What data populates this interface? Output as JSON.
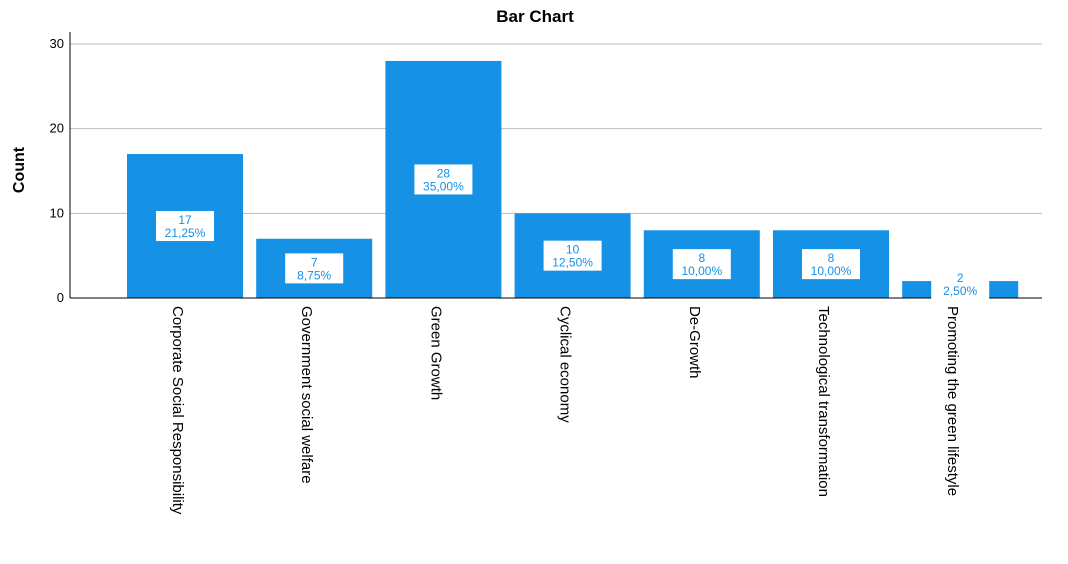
{
  "chart_data": {
    "type": "bar",
    "title": "Bar Chart",
    "xlabel": "",
    "ylabel": "Count",
    "ylim": [
      0,
      30
    ],
    "yticks": [
      0,
      10,
      20,
      30
    ],
    "grid": true,
    "categories": [
      "Corporate Social Responsibility",
      "Government social welfare",
      "Green Growth",
      "Cyclical economy",
      "De-Growth",
      "Technological transformation",
      "Promoting the green lifestyle"
    ],
    "values": [
      17,
      7,
      28,
      10,
      8,
      8,
      2
    ],
    "percent_labels": [
      "21,25%",
      "8,75%",
      "35,00%",
      "12,50%",
      "10,00%",
      "10,00%",
      "2,50%"
    ],
    "colors": {
      "bar": "#1591e6",
      "label_text": "#1591e6",
      "label_bg": "#ffffff"
    }
  }
}
